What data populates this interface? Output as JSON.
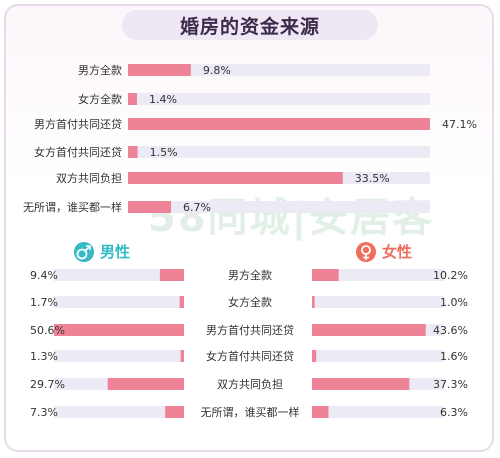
{
  "title": "婚房的资金来源",
  "watermark": "58同城|安居客",
  "colors": {
    "bar": "#ee8296",
    "track": "#eceaf5",
    "male_accent": "#35b9c6",
    "female_accent": "#ef6f5e",
    "title_pill": "#efe8f4"
  },
  "icons": {
    "male": "male-symbol-icon",
    "female": "female-symbol-icon"
  },
  "male_heading": "男性",
  "female_heading": "女性",
  "chart_data": [
    {
      "type": "bar",
      "orientation": "horizontal",
      "categories": [
        "男方全款",
        "女方全款",
        "男方首付共同还贷",
        "女方首付共同还贷",
        "双方共同负担",
        "无所谓，谁买都一样"
      ],
      "values": [
        9.8,
        1.4,
        47.1,
        1.5,
        33.5,
        6.7
      ],
      "value_labels": [
        "9.8%",
        "1.4%",
        "47.1%",
        "1.5%",
        "33.5%",
        "6.7%"
      ],
      "xlim": [
        0,
        47.1
      ]
    },
    {
      "type": "bar",
      "orientation": "horizontal",
      "series_name": "男性",
      "categories": [
        "男方全款",
        "女方全款",
        "男方首付共同还贷",
        "女方首付共同还贷",
        "双方共同负担",
        "无所谓，谁买都一样"
      ],
      "values": [
        9.4,
        1.7,
        50.6,
        1.3,
        29.7,
        7.3
      ],
      "value_labels": [
        "9.4%",
        "1.7%",
        "50.6%",
        "1.3%",
        "29.7%",
        "7.3%"
      ],
      "xlim": [
        0,
        50.6
      ]
    },
    {
      "type": "bar",
      "orientation": "horizontal",
      "series_name": "女性",
      "categories": [
        "男方全款",
        "女方全款",
        "男方首付共同还贷",
        "女方首付共同还贷",
        "双方共同负担",
        "无所谓，谁买都一样"
      ],
      "values": [
        10.2,
        1.0,
        43.6,
        1.6,
        37.3,
        6.3
      ],
      "value_labels": [
        "10.2%",
        "1.0%",
        "43.6%",
        "1.6%",
        "37.3%",
        "6.3%"
      ],
      "xlim": [
        0,
        50.6
      ]
    }
  ]
}
